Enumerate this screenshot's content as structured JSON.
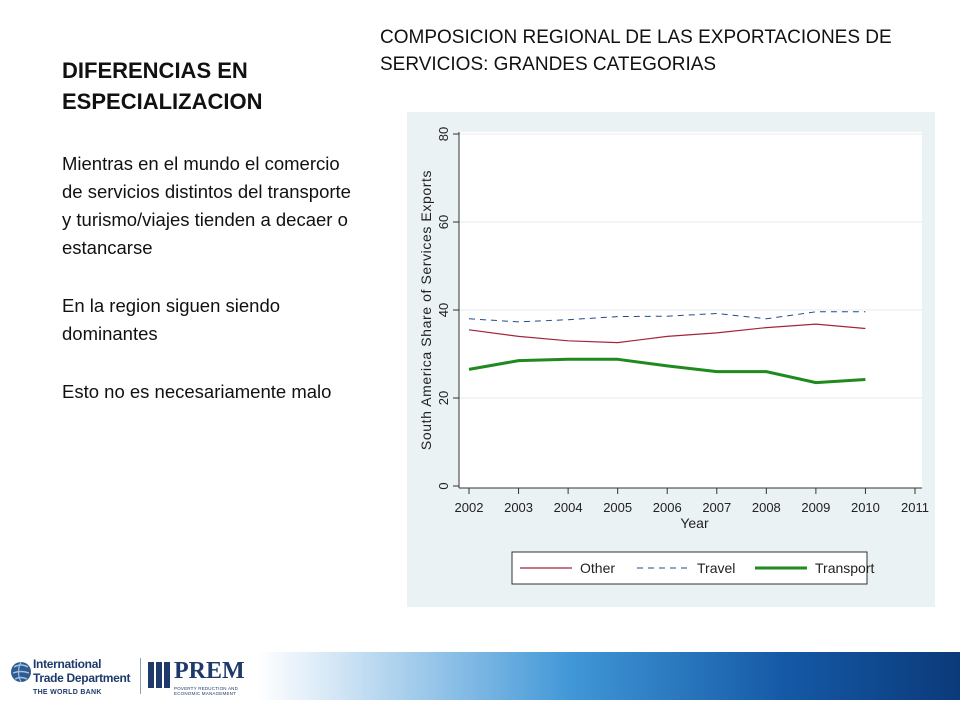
{
  "slide": {
    "title": "DIFERENCIAS EN ESPECIALIZACION",
    "bullets": [
      "Mientras en el mundo el comercio de servicios distintos del transporte y turismo/viajes tienden a decaer o estancarse",
      "En la region siguen siendo dominantes",
      "Esto no es necesariamente malo"
    ],
    "chart_heading": "COMPOSICION REGIONAL DE LAS EXPORTACIONES DE SERVICIOS: GRANDES CATEGORIAS"
  },
  "chart_data": {
    "type": "line",
    "title": "",
    "xlabel": "Year",
    "ylabel": "South America Share of Services Exports",
    "xlim": [
      2002,
      2011
    ],
    "ylim": [
      0,
      80
    ],
    "x_ticks": [
      "2002",
      "2003",
      "2004",
      "2005",
      "2006",
      "2007",
      "2008",
      "2009",
      "2010",
      "2011"
    ],
    "y_ticks": [
      "0",
      "20",
      "40",
      "60",
      "80"
    ],
    "grid": true,
    "legend_position": "bottom",
    "x": [
      2002,
      2003,
      2004,
      2005,
      2006,
      2007,
      2008,
      2009,
      2010
    ],
    "series": [
      {
        "name": "Other",
        "values": [
          35.5,
          34,
          33,
          32.6,
          34,
          34.8,
          36,
          36.8,
          35.8
        ],
        "color": "#a3243e",
        "style": "solid"
      },
      {
        "name": "Travel",
        "values": [
          38,
          37.3,
          37.8,
          38.5,
          38.6,
          39.2,
          38,
          39.6,
          39.6
        ],
        "color": "#1f4e8c",
        "style": "dashed"
      },
      {
        "name": "Transport",
        "values": [
          26.5,
          28.5,
          28.8,
          28.8,
          27.3,
          26,
          26,
          23.5,
          24.2
        ],
        "color": "#1f8a1f",
        "style": "thick"
      }
    ]
  },
  "footer": {
    "logo_line1": "International",
    "logo_line2": "Trade Department",
    "logo_bank": "THE WORLD BANK",
    "prem": "PREM",
    "prem_sub": "POVERTY REDUCTION AND ECONOMIC MANAGEMENT"
  }
}
